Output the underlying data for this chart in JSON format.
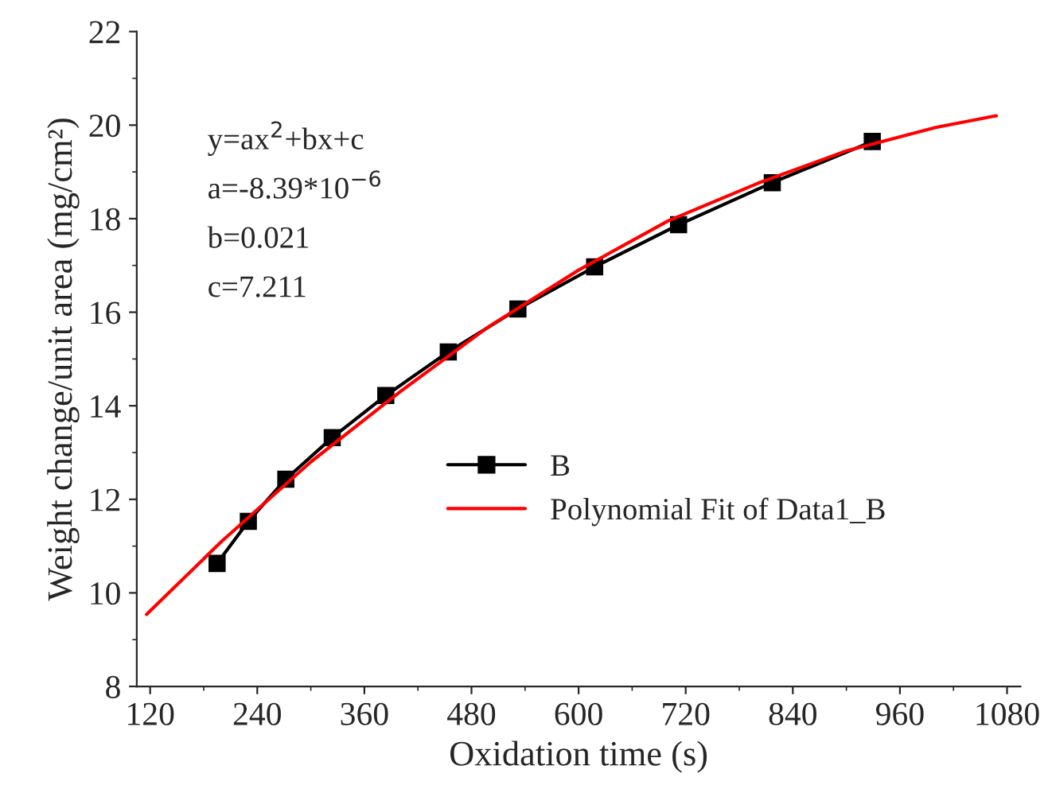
{
  "chart_data": {
    "type": "line",
    "xlabel": "Oxidation time (s)",
    "ylabel": "Weight change/unit area (mg/cm²)",
    "xlim": [
      105,
      1095
    ],
    "ylim": [
      8,
      22
    ],
    "xticks": [
      120,
      240,
      360,
      480,
      600,
      720,
      840,
      960,
      1080
    ],
    "yticks": [
      8,
      10,
      12,
      14,
      16,
      18,
      20,
      22
    ],
    "grid": false,
    "legend": "center",
    "annotations": [
      "y=ax$^{2}$+bx+c",
      "a=-8.39*10$^{−6}$",
      "b=0.021",
      "c=7.211"
    ],
    "series": [
      {
        "name": "B",
        "color": "#000000",
        "marker": "square",
        "line_style": "solid",
        "x": [
          195,
          230,
          272,
          324,
          384,
          454,
          532,
          618,
          712,
          817,
          929
        ],
        "values": [
          10.63,
          11.53,
          12.43,
          13.32,
          14.22,
          15.15,
          16.07,
          16.97,
          17.87,
          18.77,
          19.65
        ]
      },
      {
        "name": "Polynomial Fit of Data1_B",
        "color": "#ff0000",
        "marker": "none",
        "line_style": "solid",
        "x": [
          116,
          200,
          300,
          400,
          500,
          600,
          700,
          800,
          900,
          1000,
          1068
        ],
        "values": [
          9.54,
          11.1,
          12.8,
          14.3,
          15.7,
          16.9,
          17.95,
          18.75,
          19.45,
          19.95,
          20.2
        ]
      }
    ]
  }
}
